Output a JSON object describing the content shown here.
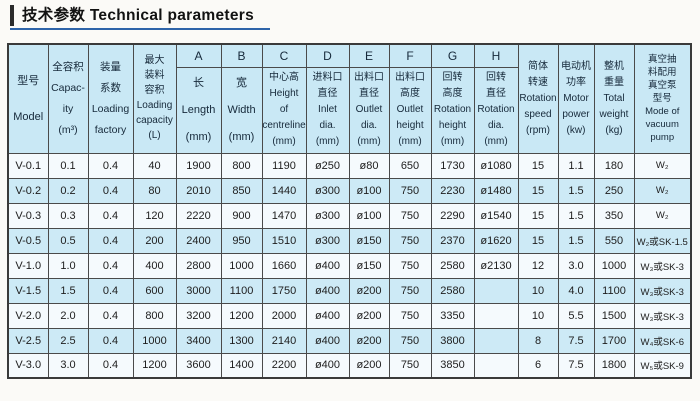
{
  "title": {
    "zh": "技术参数",
    "en": "Technical parameters"
  },
  "colors": {
    "header_bg": "#c9e8f5",
    "stripe_bg": "#cdeaf6",
    "row_bg": "#f5fafd",
    "underline": "#2e64a9",
    "border": "#4a4a4a"
  },
  "table": {
    "columns": [
      {
        "letter": "",
        "lines": [
          "型号",
          "Model"
        ]
      },
      {
        "letter": "",
        "lines": [
          "全容积",
          "Capac-",
          "ity",
          "(m³)"
        ]
      },
      {
        "letter": "",
        "lines": [
          "装量",
          "系数",
          "Loading",
          "factory"
        ]
      },
      {
        "letter": "",
        "lines": [
          "最大",
          "装料",
          "容积",
          "Loading",
          "capacity",
          "(L)"
        ]
      },
      {
        "letter": "A",
        "lines": [
          "长",
          "Length",
          "(mm)"
        ]
      },
      {
        "letter": "B",
        "lines": [
          "宽",
          "Width",
          "(mm)"
        ]
      },
      {
        "letter": "C",
        "lines": [
          "中心高",
          "Height",
          "of",
          "centreline",
          "(mm)"
        ]
      },
      {
        "letter": "D",
        "lines": [
          "进料口",
          "直径",
          "Inlet",
          "dia.",
          "(mm)"
        ]
      },
      {
        "letter": "E",
        "lines": [
          "出料口",
          "直径",
          "Outlet",
          "dia.",
          "(mm)"
        ]
      },
      {
        "letter": "F",
        "lines": [
          "出料口",
          "高度",
          "Outlet",
          "height",
          "(mm)"
        ]
      },
      {
        "letter": "G",
        "lines": [
          "回转",
          "高度",
          "Rotation",
          "height",
          "(mm)"
        ]
      },
      {
        "letter": "H",
        "lines": [
          "回转",
          "直径",
          "Rotation",
          "dia.",
          "(mm)"
        ]
      },
      {
        "letter": "",
        "lines": [
          "简体",
          "转速",
          "Rotation",
          "speed",
          "(rpm)"
        ]
      },
      {
        "letter": "",
        "lines": [
          "电动机",
          "功率",
          "Motor",
          "power",
          "(kw)"
        ]
      },
      {
        "letter": "",
        "lines": [
          "整机",
          "重量",
          "Total",
          "weight",
          "(kg)"
        ]
      },
      {
        "letter": "",
        "lines": [
          "真空抽",
          "料配用",
          "真空泵",
          "型号",
          "Mode of",
          "vacuum",
          "pump"
        ]
      }
    ],
    "rows": [
      [
        "V-0.1",
        "0.1",
        "0.4",
        "40",
        "1900",
        "800",
        "1190",
        "ø250",
        "ø80",
        "650",
        "1730",
        "ø1080",
        "15",
        "1.1",
        "180",
        "W₂"
      ],
      [
        "V-0.2",
        "0.2",
        "0.4",
        "80",
        "2010",
        "850",
        "1440",
        "ø300",
        "ø100",
        "750",
        "2230",
        "ø1480",
        "15",
        "1.5",
        "250",
        "W₂"
      ],
      [
        "V-0.3",
        "0.3",
        "0.4",
        "120",
        "2220",
        "900",
        "1470",
        "ø300",
        "ø100",
        "750",
        "2290",
        "ø1540",
        "15",
        "1.5",
        "350",
        "W₂"
      ],
      [
        "V-0.5",
        "0.5",
        "0.4",
        "200",
        "2400",
        "950",
        "1510",
        "ø300",
        "ø150",
        "750",
        "2370",
        "ø1620",
        "15",
        "1.5",
        "550",
        "W₂或SK-1.5"
      ],
      [
        "V-1.0",
        "1.0",
        "0.4",
        "400",
        "2800",
        "1000",
        "1660",
        "ø400",
        "ø150",
        "750",
        "2580",
        "ø2130",
        "12",
        "3.0",
        "1000",
        "W₃或SK-3"
      ],
      [
        "V-1.5",
        "1.5",
        "0.4",
        "600",
        "3000",
        "1100",
        "1750",
        "ø400",
        "ø200",
        "750",
        "2580",
        "",
        "10",
        "4.0",
        "1100",
        "W₃或SK-3"
      ],
      [
        "V-2.0",
        "2.0",
        "0.4",
        "800",
        "3200",
        "1200",
        "2000",
        "ø400",
        "ø200",
        "750",
        "3350",
        "",
        "10",
        "5.5",
        "1500",
        "W₃或SK-3"
      ],
      [
        "V-2.5",
        "2.5",
        "0.4",
        "1000",
        "3400",
        "1300",
        "2140",
        "ø400",
        "ø200",
        "750",
        "3800",
        "",
        "8",
        "7.5",
        "1700",
        "W₄或SK-6"
      ],
      [
        "V-3.0",
        "3.0",
        "0.4",
        "1200",
        "3600",
        "1400",
        "2200",
        "ø400",
        "ø200",
        "750",
        "3850",
        "",
        "6",
        "7.5",
        "1800",
        "W₅或SK-9"
      ]
    ]
  }
}
